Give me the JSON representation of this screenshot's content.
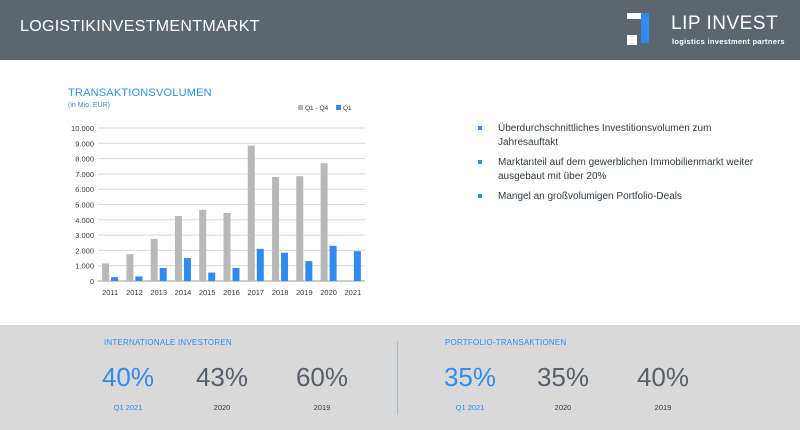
{
  "header": {
    "title": "LOGISTIKINVESTMENTMARKT",
    "logo_name": "LIP INVEST",
    "logo_tagline": "logistics investment partners"
  },
  "chart_data": {
    "type": "bar",
    "title": "TRANSAKTIONSVOLUMEN",
    "subtitle": "(in Mio. EUR)",
    "categories": [
      "2011",
      "2012",
      "2013",
      "2014",
      "2015",
      "2016",
      "2017",
      "2018",
      "2019",
      "2020",
      "2021"
    ],
    "series": [
      {
        "name": "Q1 - Q4",
        "color": "#b8b8b8",
        "values": [
          1150,
          1750,
          2750,
          4250,
          4650,
          4450,
          8850,
          6800,
          6850,
          7700,
          null
        ]
      },
      {
        "name": "Q1",
        "color": "#2f8bf0",
        "values": [
          250,
          300,
          850,
          1500,
          550,
          850,
          2100,
          1850,
          1300,
          2300,
          1950
        ]
      }
    ],
    "ylim": [
      0,
      10000
    ],
    "yticks": [
      "10.000",
      "9.000",
      "8.000",
      "7.000",
      "6.000",
      "5.000",
      "4.000",
      "3.000",
      "2.000",
      "1.000",
      "0"
    ],
    "grid": true,
    "legend_position": "top-right"
  },
  "bullets": [
    "Überdurchschnittliches Investitionsvolumen zum Jahresauftakt",
    "Marktanteil auf dem gewerblichen Immobilienmarkt weiter ausgebaut mit über 20%",
    "Mangel an großvolumigen Portfolio-Deals"
  ],
  "sections": [
    {
      "title": "INTERNATIONALE INVESTOREN",
      "stats": [
        {
          "value": "40%",
          "label": "Q1 2021"
        },
        {
          "value": "43%",
          "label": "2020"
        },
        {
          "value": "60%",
          "label": "2019"
        }
      ]
    },
    {
      "title": "PORTFOLIO-TRANSAKTIONEN",
      "stats": [
        {
          "value": "35%",
          "label": "Q1 2021"
        },
        {
          "value": "35%",
          "label": "2020"
        },
        {
          "value": "40%",
          "label": "2019"
        }
      ]
    }
  ]
}
